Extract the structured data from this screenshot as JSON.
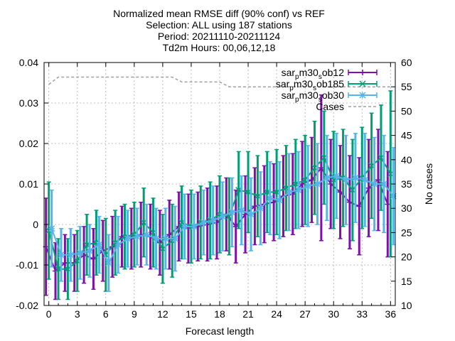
{
  "chart_data": {
    "type": "line",
    "title_lines": [
      "Normalized mean RMSE diff (90% conf) vs REF",
      "Selection: ALL using   187 stations",
      "Period: 20211110-20211124",
      "Td2m  Hours: 00,06,12,18"
    ],
    "xlabel": "Forecast length",
    "ylabel": "",
    "y2label": "No cases",
    "xlim": [
      -0.5,
      36.5
    ],
    "ylim": [
      -0.02,
      0.04
    ],
    "y2lim": [
      10,
      60
    ],
    "xticks": [
      0,
      3,
      6,
      9,
      12,
      15,
      18,
      21,
      24,
      27,
      30,
      33,
      36
    ],
    "yticks": [
      -0.02,
      -0.01,
      0,
      0.01,
      0.02,
      0.03,
      0.04
    ],
    "y2ticks": [
      10,
      15,
      20,
      25,
      30,
      35,
      40,
      45,
      50,
      55,
      60
    ],
    "ytick_labels": [
      "-0.02",
      "-0.01",
      "0",
      "0.01",
      "0.02",
      "0.03",
      "0.04"
    ],
    "grid": true,
    "legend_position": "top-right",
    "x": [
      0,
      1,
      2,
      3,
      4,
      5,
      6,
      7,
      8,
      9,
      10,
      11,
      12,
      13,
      14,
      15,
      16,
      17,
      18,
      19,
      20,
      21,
      22,
      23,
      24,
      25,
      26,
      27,
      28,
      29,
      30,
      31,
      32,
      33,
      34,
      35,
      36
    ],
    "series": [
      {
        "name": "sar_pm30_sob12",
        "legend_base": "sar",
        "legend_sub": "p",
        "legend_mid": "m30",
        "legend_sub2": "s",
        "legend_tail": "ob12",
        "color": "#7f0fa8",
        "axis": "y1",
        "marker": "plus",
        "values": [
          -0.0055,
          -0.0115,
          -0.0095,
          -0.0095,
          -0.0075,
          -0.0085,
          -0.0065,
          -0.0055,
          -0.003,
          -0.0035,
          -0.0025,
          -0.003,
          -0.0045,
          -0.0025,
          -0.0005,
          -0.001,
          -0.0005,
          0.0,
          0.0005,
          0.0025,
          -0.0005,
          0.0025,
          0.0045,
          0.005,
          0.0055,
          0.007,
          0.0075,
          0.01,
          0.011,
          0.014,
          0.01,
          0.008,
          0.0055,
          0.0045,
          0.009,
          0.011,
          0.005
        ],
        "err": [
          0.012,
          0.007,
          0.007,
          0.007,
          0.007,
          0.0075,
          0.0075,
          0.0075,
          0.0075,
          0.0075,
          0.008,
          0.008,
          0.008,
          0.0085,
          0.0085,
          0.0085,
          0.0085,
          0.009,
          0.009,
          0.009,
          0.009,
          0.0095,
          0.0095,
          0.0095,
          0.0095,
          0.01,
          0.01,
          0.0105,
          0.0105,
          0.018,
          0.011,
          0.0115,
          0.0115,
          0.012,
          0.012,
          0.0125,
          0.013
        ]
      },
      {
        "name": "sar_pm30_sob185",
        "legend_base": "sar",
        "legend_sub": "p",
        "legend_mid": "m30",
        "legend_sub2": "s",
        "legend_tail": "ob185",
        "color": "#009e73",
        "axis": "y1",
        "marker": "x",
        "values": [
          -0.0015,
          -0.011,
          -0.011,
          -0.009,
          -0.005,
          -0.0045,
          -0.0075,
          -0.0045,
          -0.003,
          -0.0025,
          0.0005,
          -0.002,
          -0.006,
          -0.004,
          0.0005,
          -0.0005,
          0.0005,
          0.001,
          0.0025,
          0.002,
          0.0085,
          0.008,
          0.007,
          0.008,
          0.008,
          0.009,
          0.01,
          0.011,
          0.014,
          0.0165,
          0.011,
          0.0115,
          0.0085,
          0.0115,
          0.0145,
          0.0165,
          0.0125
        ],
        "err": [
          0.012,
          0.0075,
          0.0075,
          0.0075,
          0.0075,
          0.008,
          0.009,
          0.008,
          0.008,
          0.008,
          0.0085,
          0.0085,
          0.0085,
          0.009,
          0.009,
          0.009,
          0.009,
          0.0095,
          0.0095,
          0.0095,
          0.0095,
          0.01,
          0.01,
          0.01,
          0.0105,
          0.0105,
          0.011,
          0.011,
          0.0115,
          0.0115,
          0.012,
          0.012,
          0.0125,
          0.0125,
          0.013,
          0.013,
          0.0205
        ]
      },
      {
        "name": "sar_pm30_sob30",
        "legend_base": "sar",
        "legend_sub": "p",
        "legend_mid": "m30",
        "legend_sub2": "s",
        "legend_tail": "ob30",
        "color": "#56b4e9",
        "axis": "y1",
        "marker": "star",
        "values": [
          -0.001,
          -0.0075,
          -0.0075,
          -0.007,
          -0.0065,
          -0.005,
          -0.0095,
          -0.005,
          -0.0035,
          -0.003,
          -0.0025,
          -0.0035,
          -0.0035,
          -0.0035,
          -0.0005,
          -0.0005,
          0.0005,
          0.001,
          0.002,
          0.003,
          0.0035,
          0.0025,
          0.004,
          0.0065,
          0.006,
          0.008,
          0.0085,
          0.0095,
          0.01,
          0.0115,
          0.012,
          0.011,
          0.0115,
          0.011,
          0.01,
          0.01,
          0.007
        ],
        "err": [
          0.0095,
          0.0065,
          0.0065,
          0.0065,
          0.0065,
          0.007,
          0.007,
          0.007,
          0.007,
          0.007,
          0.0075,
          0.0075,
          0.0075,
          0.008,
          0.008,
          0.008,
          0.008,
          0.0085,
          0.0085,
          0.0085,
          0.0085,
          0.009,
          0.009,
          0.009,
          0.0095,
          0.0095,
          0.0095,
          0.01,
          0.01,
          0.0105,
          0.0105,
          0.011,
          0.011,
          0.0115,
          0.0115,
          0.012,
          0.012
        ]
      },
      {
        "name": "Cases",
        "color": "#a0a0a0",
        "axis": "y2",
        "dashed": true,
        "values": [
          55.5,
          57,
          57,
          57,
          57,
          57,
          57,
          57,
          57,
          57,
          57,
          57,
          57,
          57,
          56,
          56,
          56,
          56,
          56,
          55,
          55,
          55,
          55,
          55,
          55,
          55,
          55,
          55,
          55,
          55,
          55,
          55,
          55,
          55,
          55,
          55,
          55
        ]
      }
    ]
  }
}
